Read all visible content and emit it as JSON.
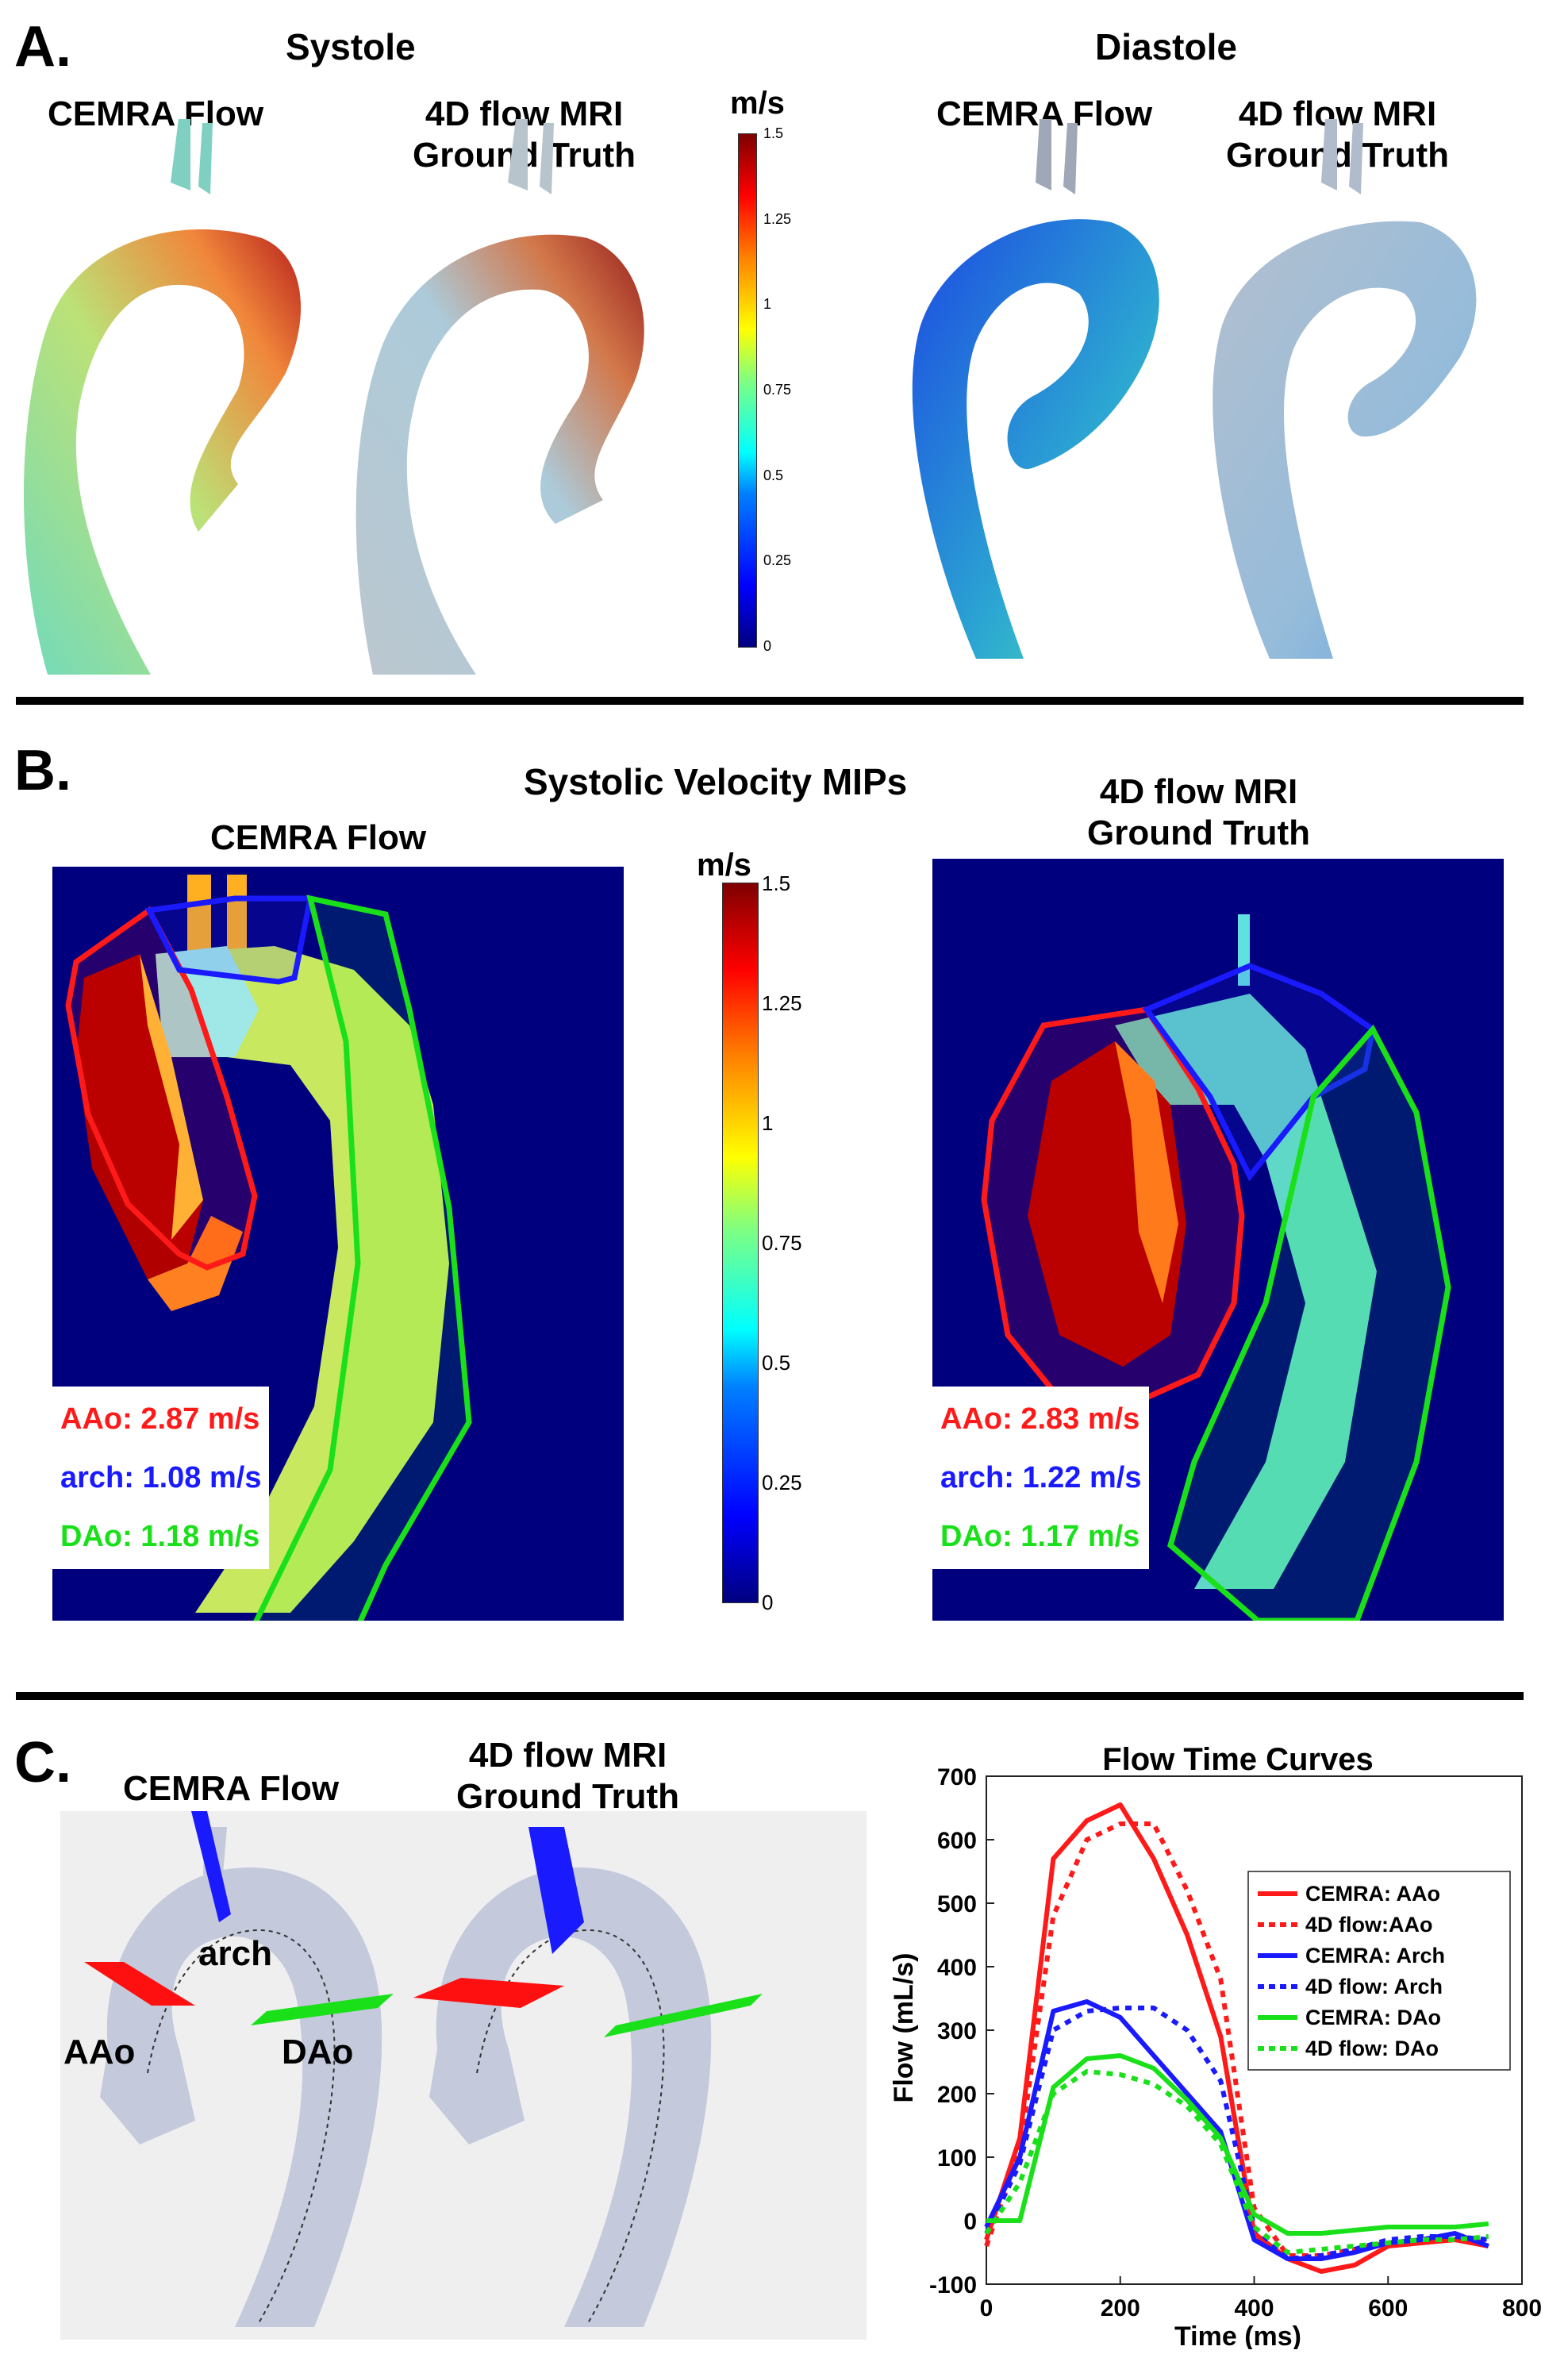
{
  "panel_a": {
    "letter": "A.",
    "systole_title": "Systole",
    "diastole_title": "Diastole",
    "cemra_label": "CEMRA Flow",
    "mri_label_line1": "4D flow MRI",
    "mri_label_line2": "Ground Truth",
    "colorbar_unit": "m/s",
    "colorbar_ticks": [
      "1.5",
      "1.25",
      "1",
      "0.75",
      "0.5",
      "0.25",
      "0"
    ]
  },
  "panel_b": {
    "letter": "B.",
    "title": "Systolic Velocity MIPs",
    "cemra_label": "CEMRA Flow",
    "mri_label_line1": "4D flow MRI",
    "mri_label_line2": "Ground Truth",
    "colorbar_unit": "m/s",
    "colorbar_ticks": [
      "1.5",
      "1.25",
      "1",
      "0.75",
      "0.5",
      "0.25",
      "0"
    ],
    "cemra_stats": {
      "aao": "AAo: 2.87 m/s",
      "arch": "arch: 1.08 m/s",
      "dao": "DAo: 1.18 m/s"
    },
    "mri_stats": {
      "aao": "AAo: 2.83 m/s",
      "arch": "arch: 1.22 m/s",
      "dao": "DAo: 1.17 m/s"
    },
    "colors": {
      "aao": "#ff0000",
      "arch": "#1010ff",
      "dao": "#00e000"
    }
  },
  "panel_c": {
    "letter": "C.",
    "cemra_label": "CEMRA Flow",
    "mri_label_line1": "4D flow MRI",
    "mri_label_line2": "Ground Truth",
    "plane_labels": {
      "arch": "arch",
      "aao": "AAo",
      "dao": "DAo"
    }
  },
  "chart_data": {
    "type": "line",
    "title": "Flow Time Curves",
    "xlabel": "Time (ms)",
    "ylabel": "Flow (mL/s)",
    "xlim": [
      0,
      800
    ],
    "ylim": [
      -100,
      700
    ],
    "xticks": [
      0,
      200,
      400,
      600,
      800
    ],
    "yticks": [
      -100,
      0,
      100,
      200,
      300,
      400,
      500,
      600,
      700
    ],
    "legend_position": "top-right",
    "series": [
      {
        "name": "CEMRA: AAo",
        "color": "#ff1a1a",
        "dash": "solid",
        "x": [
          0,
          50,
          100,
          150,
          200,
          250,
          300,
          350,
          400,
          450,
          500,
          550,
          600,
          650,
          700,
          750
        ],
        "y": [
          -30,
          130,
          570,
          630,
          655,
          570,
          450,
          290,
          -20,
          -60,
          -80,
          -70,
          -40,
          -35,
          -30,
          -40
        ]
      },
      {
        "name": "4D flow:AAo",
        "color": "#ff1a1a",
        "dash": "dotted",
        "x": [
          0,
          50,
          100,
          150,
          200,
          250,
          300,
          350,
          400,
          450,
          500,
          550,
          600,
          650,
          700,
          750
        ],
        "y": [
          -40,
          110,
          480,
          600,
          625,
          625,
          520,
          380,
          20,
          -55,
          -55,
          -45,
          -35,
          -30,
          -30,
          -35
        ]
      },
      {
        "name": "CEMRA: Arch",
        "color": "#1a1aff",
        "dash": "solid",
        "x": [
          0,
          50,
          100,
          150,
          200,
          250,
          300,
          350,
          400,
          450,
          500,
          550,
          600,
          650,
          700,
          750
        ],
        "y": [
          -10,
          100,
          330,
          345,
          320,
          260,
          200,
          140,
          -30,
          -60,
          -60,
          -50,
          -35,
          -30,
          -20,
          -40
        ]
      },
      {
        "name": "4D flow: Arch",
        "color": "#1a1aff",
        "dash": "dotted",
        "x": [
          0,
          50,
          100,
          150,
          200,
          250,
          300,
          350,
          400,
          450,
          500,
          550,
          600,
          650,
          700,
          750
        ],
        "y": [
          -20,
          90,
          300,
          330,
          335,
          335,
          300,
          220,
          -10,
          -60,
          -55,
          -45,
          -30,
          -25,
          -25,
          -30
        ]
      },
      {
        "name": "CEMRA: DAo",
        "color": "#1ae01a",
        "dash": "solid",
        "x": [
          0,
          50,
          100,
          150,
          200,
          250,
          300,
          350,
          400,
          450,
          500,
          550,
          600,
          650,
          700,
          750
        ],
        "y": [
          0,
          0,
          210,
          255,
          260,
          240,
          190,
          130,
          10,
          -20,
          -20,
          -15,
          -10,
          -10,
          -10,
          -5
        ]
      },
      {
        "name": "4D flow: DAo",
        "color": "#1ae01a",
        "dash": "dotted",
        "x": [
          0,
          50,
          100,
          150,
          200,
          250,
          300,
          350,
          400,
          450,
          500,
          550,
          600,
          650,
          700,
          750
        ],
        "y": [
          -20,
          60,
          200,
          235,
          230,
          215,
          180,
          120,
          -10,
          -50,
          -45,
          -40,
          -35,
          -30,
          -30,
          -25
        ]
      }
    ]
  }
}
